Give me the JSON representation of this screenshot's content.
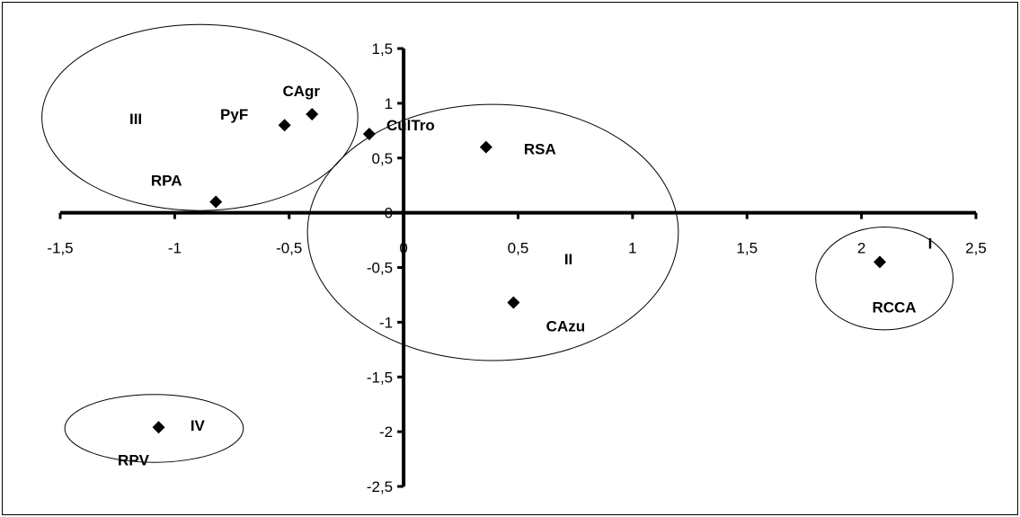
{
  "chart_data": {
    "type": "scatter",
    "title": "",
    "xlabel": "",
    "ylabel": "",
    "xlim": [
      -1.5,
      2.5
    ],
    "ylim": [
      -2.5,
      1.5
    ],
    "grid": false,
    "legend": "none",
    "x_ticks": [
      -1.5,
      -1,
      -0.5,
      0,
      0.5,
      1,
      1.5,
      2,
      2.5
    ],
    "x_tick_labels": [
      "-1,5",
      "-1",
      "-0,5",
      "0",
      "0,5",
      "1",
      "1,5",
      "2",
      "2,5"
    ],
    "y_ticks": [
      1.5,
      1,
      0.5,
      0,
      -0.5,
      -1,
      -1.5,
      -2,
      -2.5
    ],
    "y_tick_labels": [
      "1,5",
      "1",
      "0,5",
      "0",
      "-0,5",
      "-1",
      "-1,5",
      "-2",
      "-2,5"
    ],
    "marker_color": "#000000",
    "points": [
      {
        "label": "CAgr",
        "x": -0.4,
        "y": 0.9
      },
      {
        "label": "PyF",
        "x": -0.52,
        "y": 0.8
      },
      {
        "label": "CulTro",
        "x": -0.15,
        "y": 0.72
      },
      {
        "label": "RSA",
        "x": 0.36,
        "y": 0.6
      },
      {
        "label": "RPA",
        "x": -0.82,
        "y": 0.1
      },
      {
        "label": "CAzu",
        "x": 0.48,
        "y": -0.82
      },
      {
        "label": "RCCA",
        "x": 2.08,
        "y": -0.45
      },
      {
        "label": "RPV",
        "x": -1.07,
        "y": -1.96
      }
    ],
    "groups": [
      {
        "label": "I",
        "cx": 2.1,
        "cy": -0.6,
        "rx": 0.3,
        "ry": 0.47
      },
      {
        "label": "II",
        "cx": 0.39,
        "cy": -0.18,
        "rx": 0.81,
        "ry": 1.17
      },
      {
        "label": "III",
        "cx": -0.89,
        "cy": 0.87,
        "rx": 0.69,
        "ry": 0.85
      },
      {
        "label": "IV",
        "cx": -1.09,
        "cy": -1.97,
        "rx": 0.39,
        "ry": 0.31
      }
    ]
  }
}
